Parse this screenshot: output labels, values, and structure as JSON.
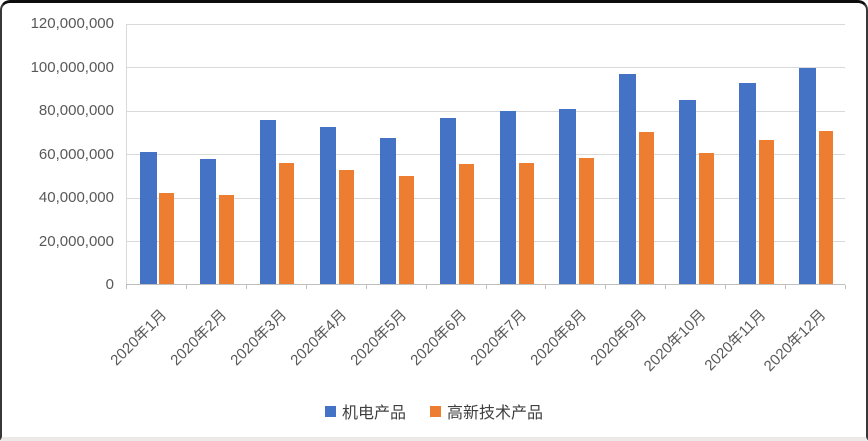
{
  "chart_data": {
    "type": "bar",
    "title": "",
    "xlabel": "",
    "ylabel": "",
    "categories": [
      "2020年1月",
      "2020年2月",
      "2020年3月",
      "2020年4月",
      "2020年5月",
      "2020年6月",
      "2020年7月",
      "2020年8月",
      "2020年9月",
      "2020年10月",
      "2020年11月",
      "2020年12月"
    ],
    "series": [
      {
        "name": "机电产品",
        "color": "#4472C4",
        "values": [
          61000000,
          58000000,
          76000000,
          72500000,
          67500000,
          77000000,
          80000000,
          81000000,
          97000000,
          85000000,
          93000000,
          100000000
        ]
      },
      {
        "name": "高新技术产品",
        "color": "#ED7D31",
        "values": [
          42500000,
          41500000,
          56000000,
          53000000,
          50000000,
          55500000,
          56000000,
          58500000,
          70500000,
          60500000,
          66500000,
          71000000
        ]
      }
    ],
    "ylim": [
      0,
      120000000
    ],
    "ytick_step": 20000000,
    "y_tick_labels": [
      "0",
      "20,000,000",
      "40,000,000",
      "60,000,000",
      "80,000,000",
      "100,000,000",
      "120,000,000"
    ],
    "grid": true,
    "legend_position": "bottom",
    "colors": {
      "grid": "#D9D9D9",
      "axis": "#BFBFBF",
      "tick_label": "#595959",
      "legend_text": "#404040",
      "background": "#FFFFFF"
    }
  }
}
